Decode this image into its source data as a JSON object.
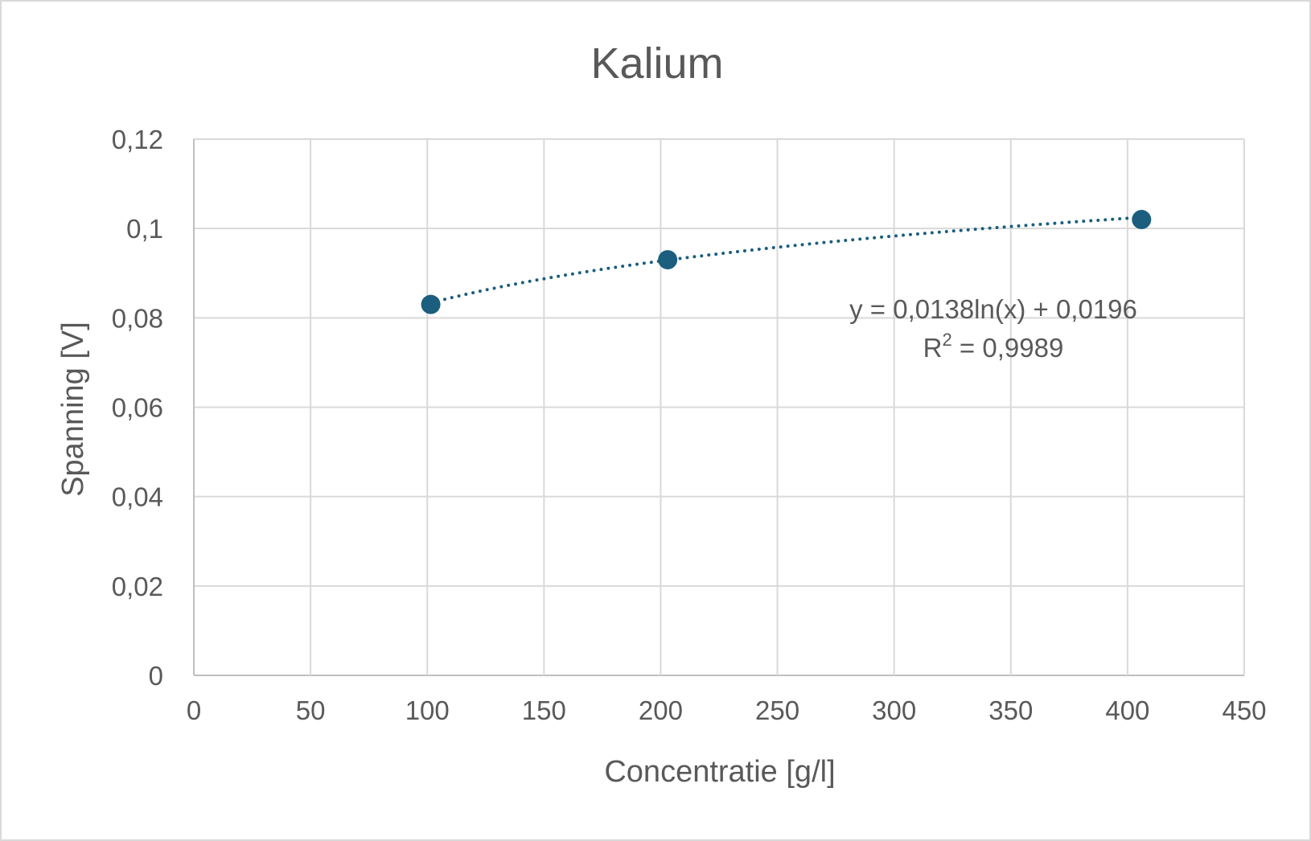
{
  "chart_data": {
    "type": "scatter",
    "title": "Kalium",
    "xlabel": "Concentratie [g/l]",
    "ylabel": "Spanning [V]",
    "xlim": [
      0,
      450
    ],
    "ylim": [
      0,
      0.12
    ],
    "x_ticks": [
      0,
      50,
      100,
      150,
      200,
      250,
      300,
      350,
      400,
      450
    ],
    "x_tick_labels": [
      "0",
      "50",
      "100",
      "150",
      "200",
      "250",
      "300",
      "350",
      "400",
      "450"
    ],
    "y_ticks": [
      0,
      0.02,
      0.04,
      0.06,
      0.08,
      0.1,
      0.12
    ],
    "y_tick_labels": [
      "0",
      "0,02",
      "0,04",
      "0,06",
      "0,08",
      "0,1",
      "0,12"
    ],
    "grid": true,
    "series": [
      {
        "x": [
          101.5,
          203,
          406
        ],
        "y": [
          0.083,
          0.093,
          0.102
        ],
        "color": "#1b5e7e"
      }
    ],
    "trendline": {
      "type": "logarithmic",
      "a": 0.0138,
      "b": 0.0196,
      "x_range": [
        101.5,
        406
      ],
      "style": "dotted",
      "color": "#1b5e7e",
      "equation_text": "y = 0,0138ln(x) + 0,0196",
      "r2_prefix": "R",
      "r2_sup": "2",
      "r2_text": " = 0,9989"
    }
  }
}
